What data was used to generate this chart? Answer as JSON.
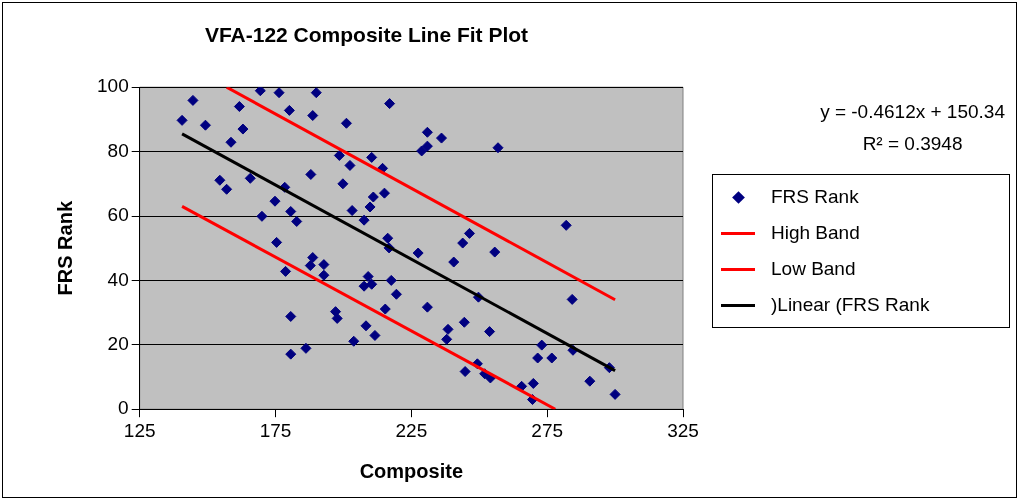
{
  "chart_data": {
    "type": "scatter",
    "title": "VFA-122 Composite Line Fit Plot",
    "xlabel": "Composite",
    "ylabel": "FRS Rank",
    "xlim": [
      125,
      325
    ],
    "xticks": [
      125,
      175,
      225,
      275,
      325
    ],
    "ylim": [
      0,
      100
    ],
    "yticks": [
      0,
      20,
      40,
      60,
      80,
      100
    ],
    "grid": "y",
    "legend": "right",
    "annotations": [
      "y = -0.4612x + 150.34",
      "R² = 0.3948"
    ],
    "series": [
      {
        "name": "FRS Rank",
        "type": "scatter",
        "marker": "diamond",
        "color": "#000080",
        "x": [
          140.6,
          144.6,
          149.2,
          161.7,
          163.0,
          158.6,
          169.4,
          176.3,
          180.1,
          188.7,
          190.0,
          201.1,
          217.0,
          154.5,
          157.0,
          165.7,
          178.4,
          174.8,
          170.0,
          180.6,
          182.8,
          188.0,
          198.5,
          202.4,
          199.8,
          210.4,
          214.4,
          211.0,
          215.1,
          209.8,
          203.2,
          207.6,
          216.3,
          216.8,
          227.5,
          175.4,
          178.7,
          188.7,
          187.8,
          192.8,
          192.8,
          209.1,
          207.6,
          210.4,
          217.6,
          219.5,
          215.4,
          180.6,
          197.1,
          197.7,
          208.3,
          211.6,
          203.8,
          180.6,
          186.2,
          230.9,
          230.9,
          228.8,
          236.1,
          256.9,
          282.0,
          246.4,
          243.9,
          240.6,
          255.7,
          249.7,
          230.9,
          284.2,
          244.5,
          238.5,
          238.0,
          253.8,
          273.0,
          271.5,
          276.7,
          284.5,
          297.9,
          244.8,
          249.3,
          252.0,
          254.1,
          265.6,
          269.9,
          269.6,
          290.7,
          300.0
        ],
        "values": [
          89.7,
          95.9,
          88.2,
          94.0,
          87.0,
          82.9,
          98.9,
          98.3,
          92.8,
          91.2,
          98.3,
          88.8,
          94.9,
          71.1,
          68.3,
          71.7,
          68.9,
          64.6,
          59.9,
          61.4,
          58.3,
          72.9,
          78.8,
          75.7,
          70.0,
          78.2,
          74.8,
          65.9,
          67.1,
          62.8,
          61.7,
          58.7,
          53.1,
          50.1,
          48.5,
          51.8,
          42.8,
          47.1,
          44.6,
          44.9,
          41.6,
          41.2,
          38.2,
          38.8,
          40.0,
          35.7,
          31.1,
          28.8,
          30.3,
          28.2,
          25.9,
          22.9,
          21.1,
          17.1,
          18.9,
          86.0,
          81.7,
          80.2,
          84.2,
          81.2,
          57.1,
          54.6,
          51.6,
          45.7,
          48.8,
          34.8,
          31.7,
          34.1,
          27.0,
          24.8,
          21.7,
          24.1,
          19.9,
          15.9,
          15.9,
          18.3,
          12.9,
          11.7,
          14.1,
          11.0,
          9.7,
          7.1,
          8.0,
          3.0,
          8.7,
          4.6
        ]
      },
      {
        "name": "High Band",
        "type": "line",
        "marker": "none",
        "color": "#ff0000",
        "x": [
          157,
          300
        ],
        "values": [
          100,
          34
        ]
      },
      {
        "name": "Low Band",
        "type": "line",
        "marker": "none",
        "color": "#ff0000",
        "x": [
          140.6,
          278
        ],
        "values": [
          63,
          0
        ]
      },
      {
        "name": ")Linear (FRS Rank",
        "type": "line",
        "marker": "none",
        "color": "#000000",
        "x": [
          140.6,
          300
        ],
        "values": [
          85.5,
          12
        ]
      }
    ]
  }
}
